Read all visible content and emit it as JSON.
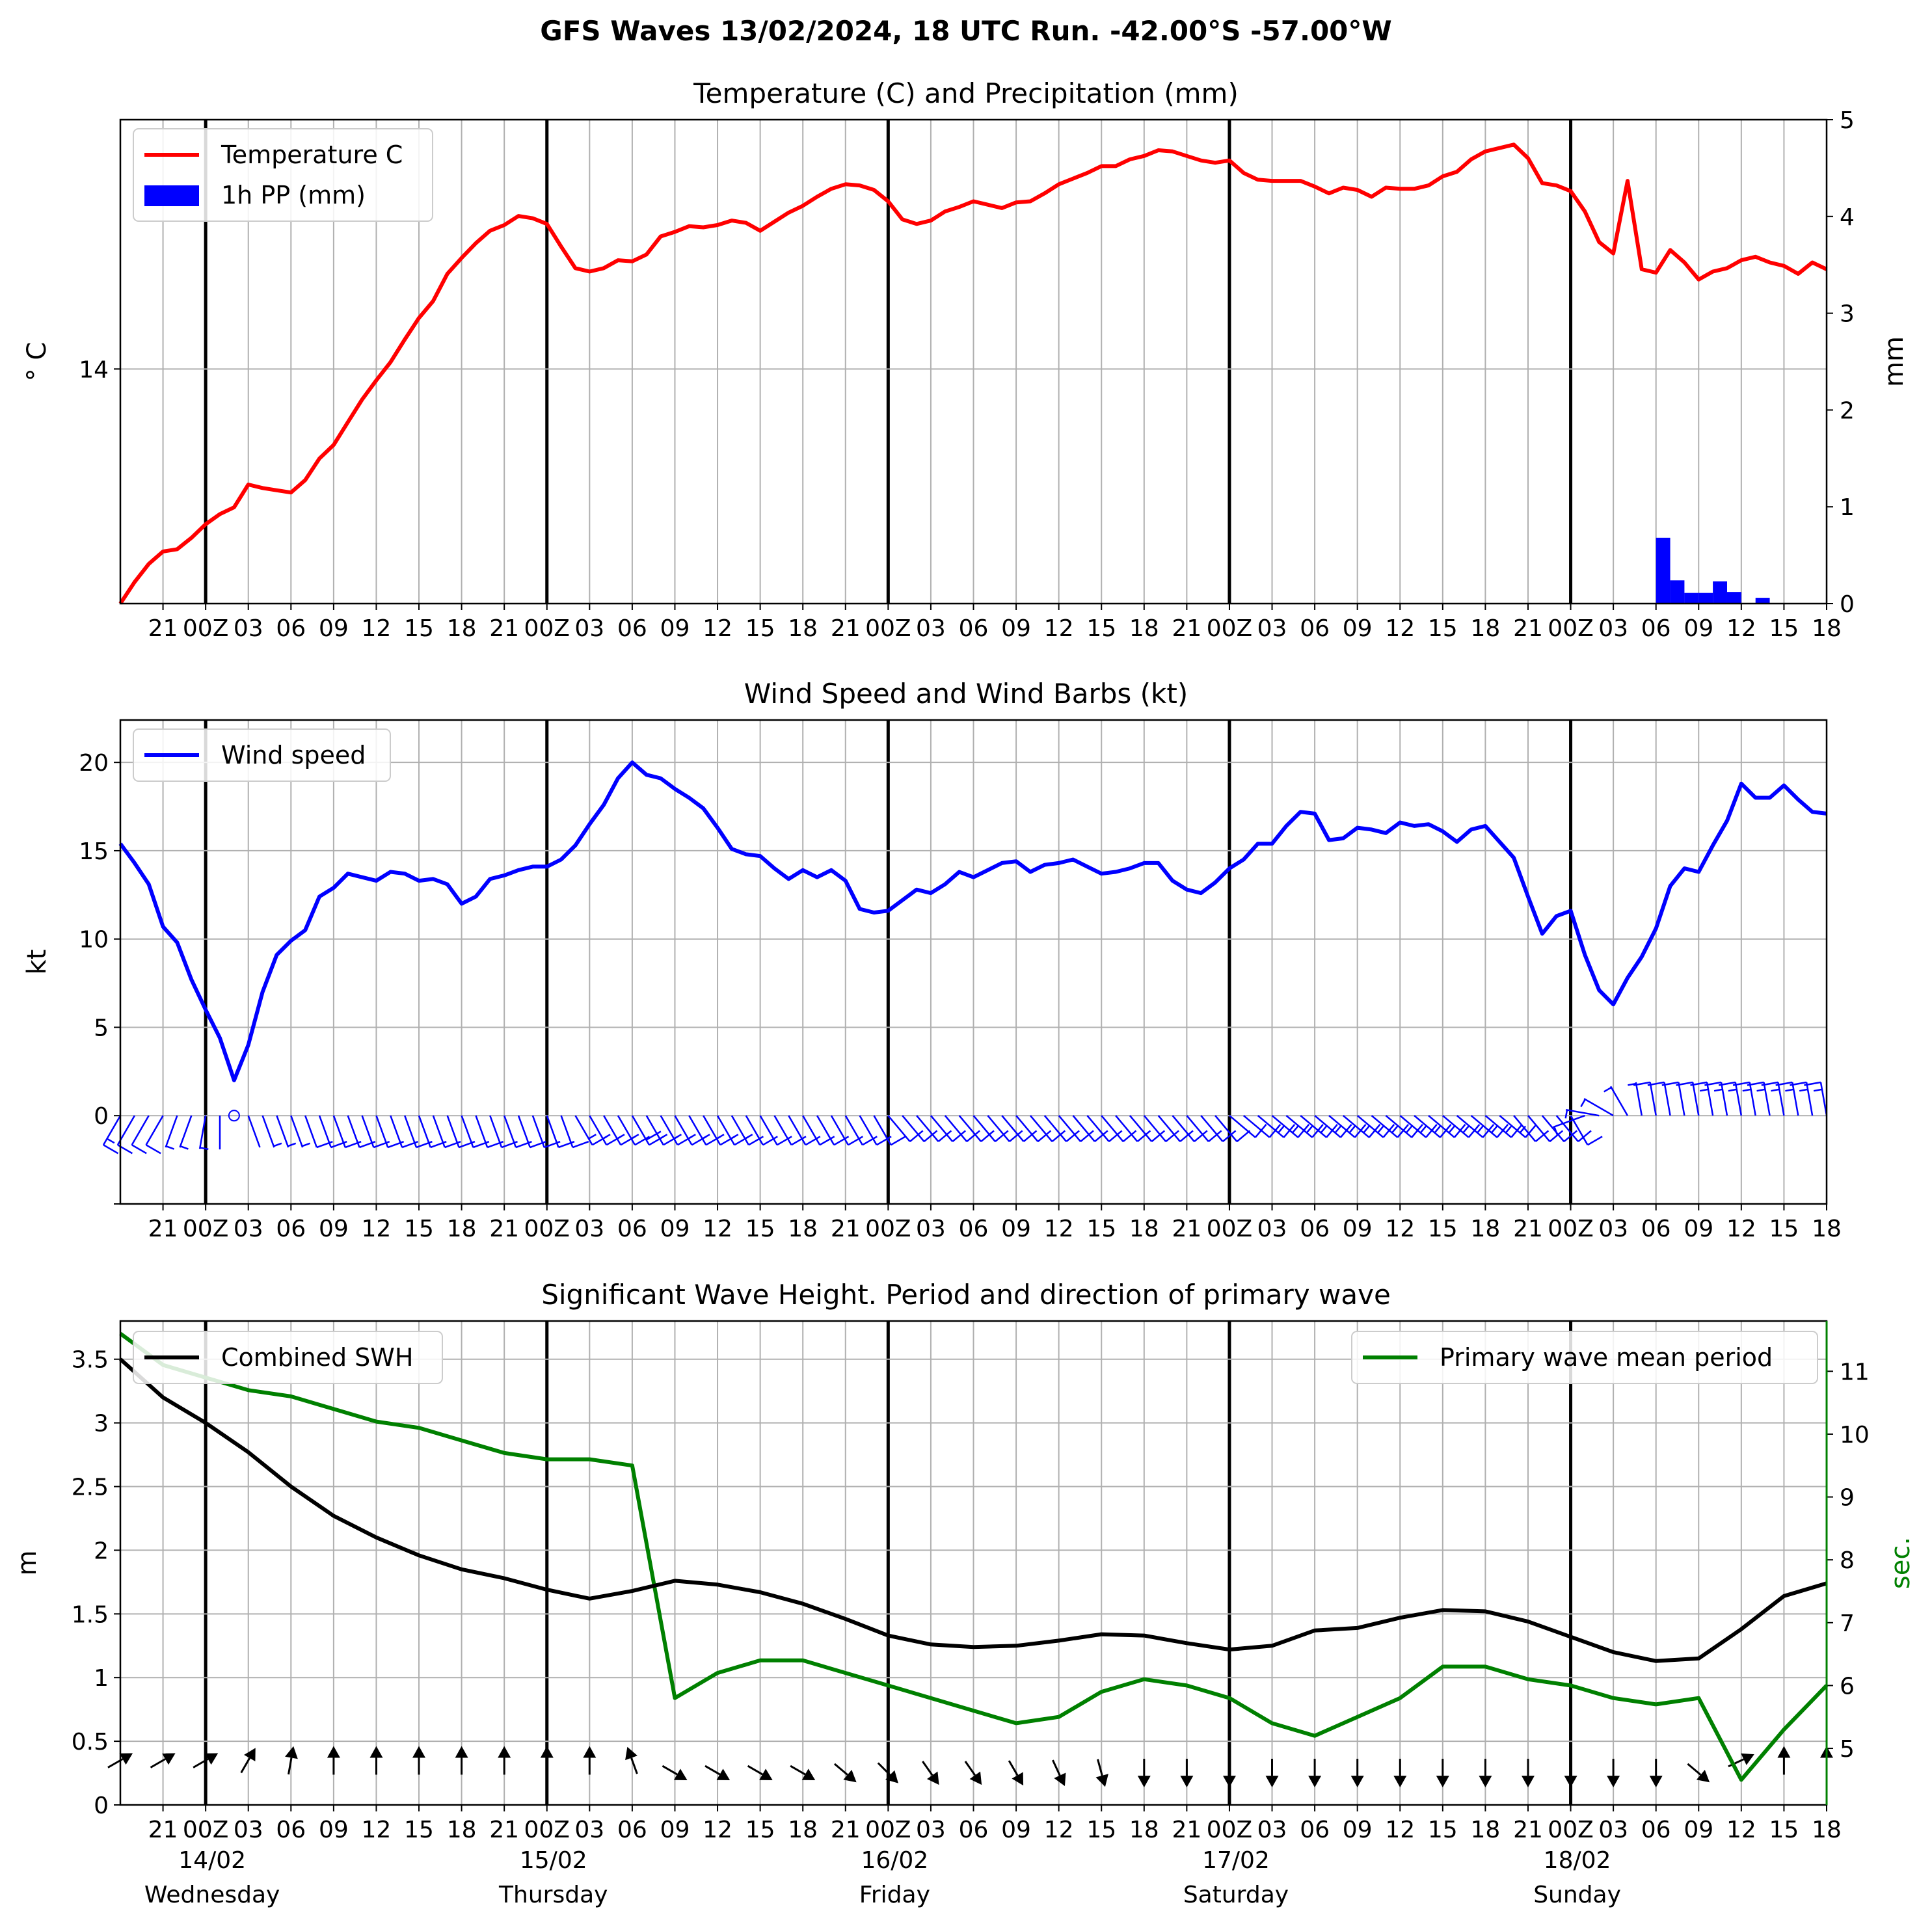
{
  "suptitle": "GFS Waves 13/02/2024, 18 UTC Run. -42.00°S -57.00°W",
  "colors": {
    "temperature": "#ff0000",
    "precip": "#0000ff",
    "wind": "#0000ff",
    "swh": "#000000",
    "period": "#008000",
    "grid": "#b0b0b0"
  },
  "x_tick_labels": [
    "21",
    "00Z",
    "03",
    "06",
    "09",
    "12",
    "15",
    "18",
    "21",
    "00Z",
    "03",
    "06",
    "09",
    "12",
    "15",
    "18",
    "21",
    "00Z",
    "03",
    "06",
    "09",
    "12",
    "15",
    "18",
    "21",
    "00Z",
    "03",
    "06",
    "09",
    "12",
    "15",
    "18",
    "21",
    "00Z",
    "03",
    "06",
    "09",
    "12",
    "15",
    "18"
  ],
  "day_labels": [
    {
      "date": "14/02",
      "day": "Wednesday"
    },
    {
      "date": "15/02",
      "day": "Thursday"
    },
    {
      "date": "16/02",
      "day": "Friday"
    },
    {
      "date": "17/02",
      "day": "Saturday"
    },
    {
      "date": "18/02",
      "day": "Sunday"
    }
  ],
  "chart_data": [
    {
      "type": "line",
      "title": "Temperature (C) and Precipitation (mm)",
      "ylabel": "$^\\circ$C",
      "ylabel_display": "° C",
      "y2label": "mm",
      "x_unit": "hours after 2024-02-13 18 UTC",
      "x_range": [
        0,
        120
      ],
      "y_ticks": [
        14
      ],
      "y2_ticks": [
        0,
        1,
        2,
        3,
        4,
        5
      ],
      "y2lim": [
        0,
        5
      ],
      "legend_placement": "upper left",
      "grid": true,
      "series": [
        {
          "name": "Temperature C",
          "type": "line",
          "x": [
            0,
            1,
            2,
            3,
            4,
            5,
            6,
            7,
            8,
            9,
            10,
            11,
            12,
            13,
            14,
            15,
            16,
            17,
            18,
            19,
            20,
            21,
            22,
            23,
            24,
            25,
            26,
            27,
            28,
            29,
            30,
            31,
            32,
            33,
            34,
            35,
            36,
            37,
            38,
            39,
            40,
            41,
            42,
            43,
            44,
            45,
            46,
            47,
            48,
            49,
            50,
            51,
            52,
            53,
            54,
            55,
            56,
            57,
            58,
            59,
            60,
            61,
            62,
            63,
            64,
            65,
            66,
            67,
            68,
            69,
            70,
            71,
            72,
            73,
            74,
            75,
            76,
            77,
            78,
            79,
            80,
            81,
            82,
            83,
            84,
            85,
            86,
            87,
            88,
            89,
            90,
            91,
            92,
            93,
            94,
            95,
            96,
            97,
            98,
            99,
            100,
            101,
            102,
            103,
            104,
            105,
            106,
            107,
            108,
            109,
            110,
            111,
            112,
            113,
            114,
            115,
            116,
            117,
            118,
            119,
            120
          ],
          "values": [
            11.93,
            12.12,
            12.28,
            12.39,
            12.41,
            12.51,
            12.63,
            12.72,
            12.78,
            12.98,
            12.95,
            12.93,
            12.91,
            13.02,
            13.21,
            13.33,
            13.53,
            13.73,
            13.9,
            14.06,
            14.26,
            14.45,
            14.6,
            14.84,
            14.98,
            15.11,
            15.22,
            15.27,
            15.35,
            15.33,
            15.28,
            15.08,
            14.89,
            14.86,
            14.89,
            14.96,
            14.95,
            15.01,
            15.17,
            15.21,
            15.26,
            15.25,
            15.27,
            15.31,
            15.29,
            15.22,
            15.3,
            15.38,
            15.44,
            15.52,
            15.59,
            15.63,
            15.62,
            15.58,
            15.48,
            15.32,
            15.28,
            15.31,
            15.39,
            15.43,
            15.48,
            15.45,
            15.42,
            15.47,
            15.48,
            15.55,
            15.63,
            15.68,
            15.73,
            15.79,
            15.79,
            15.85,
            15.88,
            15.93,
            15.92,
            15.88,
            15.84,
            15.82,
            15.84,
            15.73,
            15.67,
            15.66,
            15.66,
            15.66,
            15.61,
            15.55,
            15.6,
            15.58,
            15.52,
            15.6,
            15.59,
            15.59,
            15.62,
            15.7,
            15.74,
            15.85,
            15.92,
            15.95,
            15.98,
            15.86,
            15.64,
            15.62,
            15.57,
            15.39,
            15.12,
            15.02,
            15.66,
            14.88,
            14.85,
            15.05,
            14.94,
            14.79,
            14.86,
            14.89,
            14.96,
            14.99,
            14.94,
            14.91,
            14.84,
            14.94,
            14.88
          ]
        },
        {
          "name": "1h PP (mm)",
          "type": "bar",
          "axis": "right",
          "x": [
            108,
            109,
            110,
            111,
            112,
            113,
            114,
            115,
            116,
            117,
            118,
            119
          ],
          "values": [
            0.68,
            0.24,
            0.11,
            0.11,
            0.23,
            0.12,
            0.0,
            0.06,
            0.0,
            0.0,
            0.0,
            0.0
          ]
        }
      ]
    },
    {
      "type": "line",
      "title": "Wind Speed and Wind Barbs (kt)",
      "ylabel": "kt",
      "ylim": [
        -5,
        22.4
      ],
      "y_ticks": [
        0,
        5,
        10,
        15,
        20
      ],
      "legend_placement": "upper left",
      "grid": true,
      "series": [
        {
          "name": "Wind speed",
          "x": [
            0,
            1,
            2,
            3,
            4,
            5,
            6,
            7,
            8,
            9,
            10,
            11,
            12,
            13,
            14,
            15,
            16,
            17,
            18,
            19,
            20,
            21,
            22,
            23,
            24,
            25,
            26,
            27,
            28,
            29,
            30,
            31,
            32,
            33,
            34,
            35,
            36,
            37,
            38,
            39,
            40,
            41,
            42,
            43,
            44,
            45,
            46,
            47,
            48,
            49,
            50,
            51,
            52,
            53,
            54,
            55,
            56,
            57,
            58,
            59,
            60,
            61,
            62,
            63,
            64,
            65,
            66,
            67,
            68,
            69,
            70,
            71,
            72,
            73,
            74,
            75,
            76,
            77,
            78,
            79,
            80,
            81,
            82,
            83,
            84,
            85,
            86,
            87,
            88,
            89,
            90,
            91,
            92,
            93,
            94,
            95,
            96,
            97,
            98,
            99,
            100,
            101,
            102,
            103,
            104,
            105,
            106,
            107,
            108,
            109,
            110,
            111,
            112,
            113,
            114,
            115,
            116,
            117,
            118,
            119,
            120
          ],
          "values": [
            15.4,
            14.3,
            13.1,
            10.7,
            9.8,
            7.7,
            6.0,
            4.4,
            2.0,
            4.0,
            7.0,
            9.1,
            9.9,
            10.5,
            12.4,
            12.9,
            13.7,
            13.5,
            13.3,
            13.8,
            13.7,
            13.3,
            13.4,
            13.1,
            12.0,
            12.4,
            13.4,
            13.6,
            13.9,
            14.1,
            14.1,
            14.5,
            15.3,
            16.5,
            17.6,
            19.1,
            20.0,
            19.3,
            19.1,
            18.5,
            18.0,
            17.4,
            16.3,
            15.1,
            14.8,
            14.7,
            14.0,
            13.4,
            13.9,
            13.5,
            13.9,
            13.3,
            11.7,
            11.5,
            11.6,
            12.2,
            12.8,
            12.6,
            13.1,
            13.8,
            13.5,
            13.9,
            14.3,
            14.4,
            13.8,
            14.2,
            14.3,
            14.5,
            14.1,
            13.7,
            13.8,
            14.0,
            14.3,
            14.3,
            13.3,
            12.8,
            12.6,
            13.2,
            14.0,
            14.5,
            15.4,
            15.4,
            16.4,
            17.2,
            17.1,
            15.6,
            15.7,
            16.3,
            16.2,
            16.0,
            16.6,
            16.4,
            16.5,
            16.1,
            15.5,
            16.2,
            16.4,
            15.5,
            14.6,
            12.4,
            10.3,
            11.3,
            11.6,
            9.1,
            7.1,
            6.3,
            7.8,
            9.0,
            10.6,
            13.0,
            14.0,
            13.8,
            15.3,
            16.7,
            18.8,
            18.0,
            18.0,
            18.7,
            17.9,
            17.2,
            17.1
          ]
        },
        {
          "name": "Wind barbs",
          "type": "barbs",
          "every_hours": 1,
          "from_direction_deg_estimate": [
            210,
            210,
            210,
            210,
            200,
            200,
            190,
            180,
            0,
            160,
            160,
            160,
            160,
            160,
            160,
            160,
            160,
            160,
            160,
            160,
            160,
            160,
            160,
            160,
            160,
            160,
            160,
            160,
            160,
            160,
            160,
            160,
            150,
            150,
            150,
            150,
            150,
            150,
            150,
            150,
            150,
            150,
            150,
            150,
            150,
            150,
            150,
            150,
            150,
            150,
            150,
            150,
            150,
            150,
            140,
            140,
            140,
            140,
            140,
            140,
            140,
            140,
            140,
            140,
            140,
            140,
            140,
            140,
            140,
            140,
            140,
            140,
            140,
            140,
            140,
            140,
            140,
            140,
            130,
            130,
            130,
            130,
            130,
            130,
            130,
            130,
            130,
            130,
            130,
            130,
            130,
            130,
            130,
            130,
            130,
            130,
            130,
            130,
            140,
            140,
            140,
            140,
            150,
            250,
            280,
            300,
            330,
            350,
            350,
            350,
            350,
            350,
            350,
            350,
            350,
            350,
            350,
            350,
            350,
            350,
            350
          ]
        }
      ]
    },
    {
      "type": "line",
      "title": "Significant Wave Height. Period and direction of primary wave",
      "ylabel": "m",
      "y2label": "sec.",
      "ylim": [
        0,
        3.8
      ],
      "y_ticks": [
        0.0,
        0.5,
        1.0,
        1.5,
        2.0,
        2.5,
        3.0,
        3.5
      ],
      "y2lim": [
        4.1,
        11.8
      ],
      "y2_ticks": [
        5,
        6,
        7,
        8,
        9,
        10,
        11
      ],
      "grid": true,
      "series": [
        {
          "name": "Combined SWH",
          "axis": "left",
          "legend_placement": "upper left",
          "x": [
            0,
            3,
            6,
            9,
            12,
            15,
            18,
            21,
            24,
            27,
            30,
            33,
            36,
            39,
            42,
            45,
            48,
            51,
            54,
            57,
            60,
            63,
            66,
            69,
            72,
            75,
            78,
            81,
            84,
            87,
            90,
            93,
            96,
            99,
            102,
            105,
            108,
            111,
            114,
            117,
            120
          ],
          "values": [
            3.5,
            3.2,
            3.0,
            2.77,
            2.5,
            2.27,
            2.1,
            1.96,
            1.85,
            1.78,
            1.69,
            1.62,
            1.68,
            1.76,
            1.73,
            1.67,
            1.58,
            1.46,
            1.33,
            1.26,
            1.24,
            1.25,
            1.29,
            1.34,
            1.33,
            1.27,
            1.22,
            1.25,
            1.37,
            1.39,
            1.47,
            1.53,
            1.52,
            1.44,
            1.32,
            1.2,
            1.13,
            1.15,
            1.38,
            1.64,
            1.74
          ]
        },
        {
          "name": "Primary wave mean period",
          "axis": "right",
          "legend_placement": "upper right",
          "x": [
            0,
            3,
            6,
            9,
            12,
            15,
            18,
            21,
            24,
            27,
            30,
            33,
            36,
            39,
            42,
            45,
            48,
            51,
            54,
            57,
            60,
            63,
            66,
            69,
            72,
            75,
            78,
            81,
            84,
            87,
            90,
            93,
            96,
            99,
            102,
            105,
            108,
            111,
            114,
            117,
            120
          ],
          "values": [
            11.6,
            11.1,
            10.9,
            10.7,
            10.6,
            10.4,
            10.2,
            10.1,
            9.9,
            9.7,
            9.6,
            9.6,
            9.5,
            5.8,
            6.2,
            6.4,
            6.4,
            6.2,
            6.0,
            5.8,
            5.6,
            5.4,
            5.5,
            5.9,
            6.1,
            6.0,
            5.8,
            5.4,
            5.2,
            5.5,
            5.8,
            6.3,
            6.3,
            6.1,
            6.0,
            5.8,
            5.7,
            5.8,
            4.5,
            5.3,
            6.0
          ]
        },
        {
          "name": "Primary wave direction arrows",
          "type": "quiver",
          "x": [
            0,
            3,
            6,
            9,
            12,
            15,
            18,
            21,
            24,
            27,
            30,
            33,
            36,
            39,
            42,
            45,
            48,
            51,
            54,
            57,
            60,
            63,
            66,
            69,
            72,
            75,
            78,
            81,
            84,
            87,
            90,
            93,
            96,
            99,
            102,
            105,
            108,
            111,
            114,
            117,
            120
          ],
          "toward_angle_deg_estimate": [
            30,
            30,
            30,
            60,
            80,
            90,
            90,
            90,
            90,
            90,
            90,
            90,
            110,
            -30,
            -30,
            -30,
            -30,
            -40,
            -45,
            -55,
            -55,
            -60,
            -65,
            -75,
            -90,
            -90,
            -90,
            -90,
            -90,
            -90,
            -90,
            -90,
            -90,
            -90,
            -90,
            -90,
            -90,
            -40,
            25,
            90,
            90
          ]
        }
      ]
    }
  ]
}
